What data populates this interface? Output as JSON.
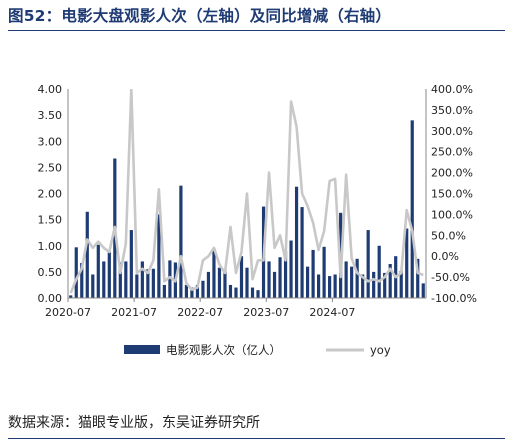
{
  "figure_title": "图52：电影大盘观影人次（左轴）及同比增减（右轴）",
  "source": "数据来源：猫眼专业版，东吴证券研究所",
  "colors": {
    "bar": "#1f3b73",
    "line": "#c8c8c8",
    "title": "#1f3b73"
  },
  "chart_data": {
    "type": "bar",
    "x_start": "2020-07",
    "x_ticks": [
      "2020-07",
      "2021-07",
      "2022-07",
      "2023-07",
      "2024-07"
    ],
    "y_left": {
      "range": [
        0,
        4
      ],
      "ticks": [
        "0.00",
        "0.50",
        "1.00",
        "1.50",
        "2.00",
        "2.50",
        "3.00",
        "3.50",
        "4.00"
      ]
    },
    "y_right": {
      "range": [
        -100,
        400
      ],
      "ticks": [
        "-100.0%",
        "-50.0%",
        "0.0%",
        "50.0%",
        "100.0%",
        "150.0%",
        "200.0%",
        "250.0%",
        "300.0%",
        "350.0%",
        "400.0%"
      ]
    },
    "legend_position": "bottom",
    "series": [
      {
        "name": "电影观影人次（亿人）",
        "type": "bar",
        "axis": "left",
        "values": [
          0.05,
          0.97,
          0.67,
          1.65,
          0.45,
          1.02,
          0.7,
          0.88,
          2.67,
          0.68,
          0.7,
          1.3,
          0.45,
          0.7,
          0.55,
          0.56,
          1.6,
          0.25,
          0.72,
          0.68,
          2.15,
          0.25,
          0.2,
          0.25,
          0.33,
          0.5,
          0.95,
          0.58,
          0.55,
          0.25,
          0.2,
          0.8,
          0.58,
          0.2,
          0.15,
          1.75,
          0.7,
          0.5,
          0.78,
          0.9,
          1.1,
          2.13,
          1.74,
          0.6,
          0.92,
          0.45,
          0.98,
          0.42,
          0.45,
          1.63,
          0.7,
          0.6,
          0.75,
          0.45,
          1.3,
          0.5,
          1.0,
          0.48,
          0.65,
          0.8,
          0.52,
          1.33,
          3.4,
          0.75,
          0.28
        ]
      },
      {
        "name": "yoy",
        "type": "line",
        "axis": "right",
        "values": [
          -88,
          -55,
          -30,
          40,
          20,
          35,
          20,
          10,
          70,
          -40,
          30,
          400,
          -40,
          -30,
          -40,
          -10,
          160,
          -60,
          -50,
          -60,
          0,
          -65,
          -80,
          -75,
          -10,
          0,
          20,
          -20,
          -40,
          70,
          -40,
          10,
          150,
          -55,
          -10,
          -10,
          200,
          20,
          50,
          -10,
          370,
          310,
          150,
          120,
          80,
          15,
          60,
          180,
          185,
          -50,
          195,
          -5,
          -40,
          -50,
          -60,
          -55,
          -60,
          -50,
          -30,
          -50,
          -40,
          110,
          60,
          -40,
          -45
        ]
      }
    ]
  }
}
